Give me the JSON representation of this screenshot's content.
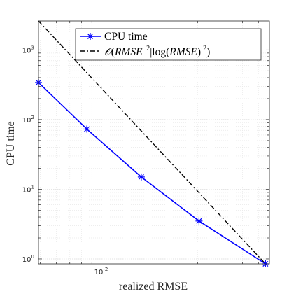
{
  "chart_data": {
    "type": "line",
    "xlabel": "realized RMSE",
    "ylabel": "CPU time",
    "xscale": "log",
    "yscale": "log",
    "xlim": [
      0.0049,
      0.068
    ],
    "ylim": [
      0.85,
      2600
    ],
    "grid": true,
    "legend_position": "top-right",
    "x_ticks": [
      {
        "base": "10",
        "exp": "-2",
        "value": 0.01
      }
    ],
    "y_ticks": [
      {
        "base": "10",
        "exp": "0",
        "value": 1
      },
      {
        "base": "10",
        "exp": "1",
        "value": 10
      },
      {
        "base": "10",
        "exp": "2",
        "value": 100
      },
      {
        "base": "10",
        "exp": "3",
        "value": 1000
      }
    ],
    "series": [
      {
        "name": "CPU time",
        "color": "#0000ff",
        "marker": "asterisk",
        "linestyle": "solid",
        "x": [
          0.0049,
          0.0085,
          0.0158,
          0.0305,
          0.065
        ],
        "y": [
          340,
          73,
          15,
          3.5,
          0.85
        ]
      },
      {
        "name": "O(RMSE^{-2}|log(RMSE)|^2)",
        "color": "#000000",
        "marker": "none",
        "linestyle": "dashdot",
        "x": [
          0.0049,
          0.065
        ],
        "y": [
          2600,
          0.85
        ]
      }
    ]
  }
}
